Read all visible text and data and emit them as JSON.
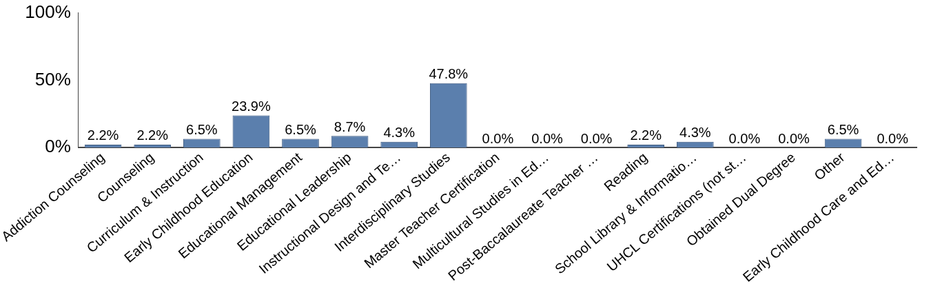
{
  "chart_data": {
    "type": "bar",
    "categories": [
      "Addiction Counseling",
      "Counseling",
      "Curriculum & Instruction",
      "Early Childhood Education",
      "Educational Management",
      "Educational Leadership",
      "Instructional Design and Te…",
      "Interdisciplinary Studies",
      "Master Teacher Certification",
      "Multicultural Studies in Ed…",
      "Post-Baccalaureate Teacher …",
      "Reading",
      "School Library & Informatio…",
      "UHCL Certifications (not st…",
      "Obtained Dual Degree",
      "Other",
      "Early Childhood Care and Ed…"
    ],
    "values": [
      2.2,
      2.2,
      6.5,
      23.9,
      6.5,
      8.7,
      4.3,
      47.8,
      0.0,
      0.0,
      0.0,
      2.2,
      4.3,
      0.0,
      0.0,
      6.5,
      0.0
    ],
    "value_labels": [
      "2.2%",
      "2.2%",
      "6.5%",
      "23.9%",
      "6.5%",
      "8.7%",
      "4.3%",
      "47.8%",
      "0.0%",
      "0.0%",
      "0.0%",
      "2.2%",
      "4.3%",
      "0.0%",
      "0.0%",
      "6.5%",
      "0.0%"
    ],
    "color": "#5b7fad",
    "ylim": [
      0,
      100
    ],
    "yticks": [
      {
        "value": 0,
        "label": "0%"
      },
      {
        "value": 50,
        "label": "50%"
      },
      {
        "value": 100,
        "label": "100%"
      }
    ],
    "grid": false,
    "legend": false
  }
}
